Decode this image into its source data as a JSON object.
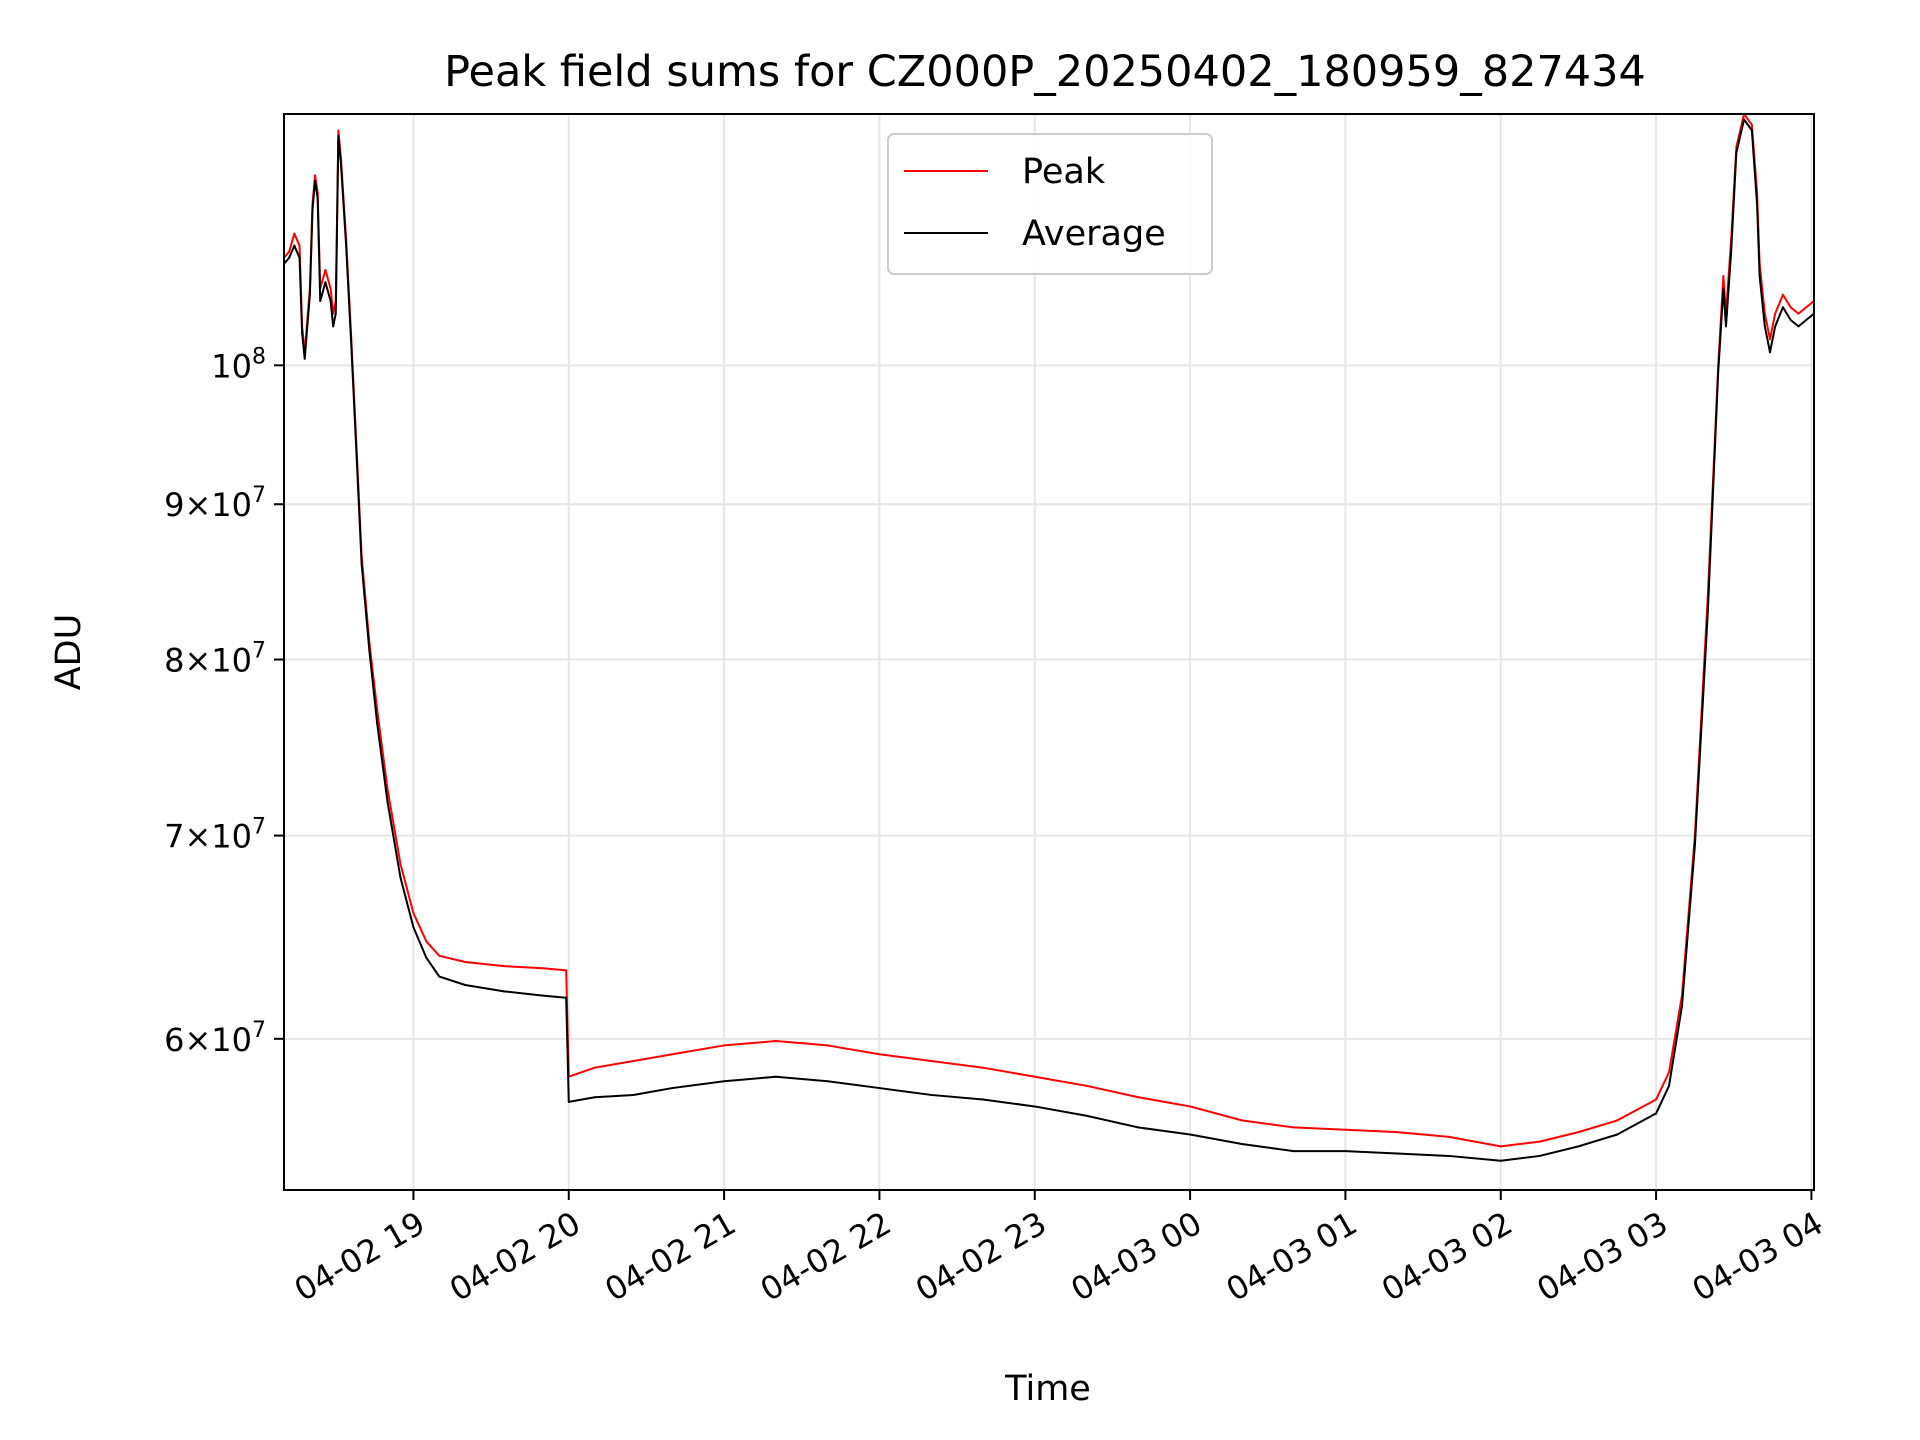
{
  "chart_data": {
    "type": "line",
    "title": "Peak field sums for CZ000P_20250402_180959_827434",
    "xlabel": "Time",
    "ylabel": "ADU",
    "y_scale": "log",
    "ylim": [
      53500000,
      121000000
    ],
    "xlim": [
      "2025-04-02 18:10",
      "2025-04-03 04:01"
    ],
    "grid": true,
    "legend_position": "top-center",
    "x_ticks": [
      {
        "value": "2025-04-02 19:00",
        "label": "04-02 19"
      },
      {
        "value": "2025-04-02 20:00",
        "label": "04-02 20"
      },
      {
        "value": "2025-04-02 21:00",
        "label": "04-02 21"
      },
      {
        "value": "2025-04-02 22:00",
        "label": "04-02 22"
      },
      {
        "value": "2025-04-02 23:00",
        "label": "04-02 23"
      },
      {
        "value": "2025-04-03 00:00",
        "label": "04-03 00"
      },
      {
        "value": "2025-04-03 01:00",
        "label": "04-03 01"
      },
      {
        "value": "2025-04-03 02:00",
        "label": "04-03 02"
      },
      {
        "value": "2025-04-03 03:00",
        "label": "04-03 03"
      },
      {
        "value": "2025-04-03 04:00",
        "label": "04-03 04"
      }
    ],
    "y_ticks": [
      {
        "value": 60000000,
        "mant": "6",
        "exp": "7"
      },
      {
        "value": 70000000,
        "mant": "7",
        "exp": "7"
      },
      {
        "value": 80000000,
        "mant": "8",
        "exp": "7"
      },
      {
        "value": 90000000,
        "mant": "9",
        "exp": "7"
      },
      {
        "value": 100000000,
        "mant": "",
        "exp": "8"
      }
    ],
    "series": [
      {
        "name": "Peak",
        "color": "#ff0000",
        "points": [
          [
            "2025-04-02 18:10",
            108500000
          ],
          [
            "2025-04-02 18:12",
            109000000
          ],
          [
            "2025-04-02 18:14",
            110500000
          ],
          [
            "2025-04-02 18:16",
            109500000
          ],
          [
            "2025-04-02 18:17",
            103000000
          ],
          [
            "2025-04-02 18:18",
            101000000
          ],
          [
            "2025-04-02 18:20",
            106000000
          ],
          [
            "2025-04-02 18:21",
            113000000
          ],
          [
            "2025-04-02 18:22",
            115500000
          ],
          [
            "2025-04-02 18:23",
            114000000
          ],
          [
            "2025-04-02 18:24",
            106000000
          ],
          [
            "2025-04-02 18:26",
            107500000
          ],
          [
            "2025-04-02 18:28",
            106000000
          ],
          [
            "2025-04-02 18:29",
            104000000
          ],
          [
            "2025-04-02 18:30",
            105000000
          ],
          [
            "2025-04-02 18:31",
            119500000
          ],
          [
            "2025-04-02 18:32",
            117000000
          ],
          [
            "2025-04-02 18:34",
            110000000
          ],
          [
            "2025-04-02 18:36",
            102000000
          ],
          [
            "2025-04-02 18:38",
            94000000
          ],
          [
            "2025-04-02 18:40",
            86500000
          ],
          [
            "2025-04-02 18:43",
            81000000
          ],
          [
            "2025-04-02 18:46",
            77000000
          ],
          [
            "2025-04-02 18:50",
            72500000
          ],
          [
            "2025-04-02 18:55",
            68500000
          ],
          [
            "2025-04-02 19:00",
            66000000
          ],
          [
            "2025-04-02 19:05",
            64600000
          ],
          [
            "2025-04-02 19:10",
            63900000
          ],
          [
            "2025-04-02 19:20",
            63600000
          ],
          [
            "2025-04-02 19:35",
            63400000
          ],
          [
            "2025-04-02 19:50",
            63300000
          ],
          [
            "2025-04-02 19:59",
            63200000
          ],
          [
            "2025-04-02 20:00",
            58300000
          ],
          [
            "2025-04-02 20:10",
            58700000
          ],
          [
            "2025-04-02 20:25",
            59000000
          ],
          [
            "2025-04-02 20:40",
            59300000
          ],
          [
            "2025-04-02 21:00",
            59700000
          ],
          [
            "2025-04-02 21:20",
            59900000
          ],
          [
            "2025-04-02 21:40",
            59700000
          ],
          [
            "2025-04-02 22:00",
            59300000
          ],
          [
            "2025-04-02 22:20",
            59000000
          ],
          [
            "2025-04-02 22:40",
            58700000
          ],
          [
            "2025-04-02 23:00",
            58300000
          ],
          [
            "2025-04-02 23:20",
            57900000
          ],
          [
            "2025-04-02 23:40",
            57400000
          ],
          [
            "2025-04-03 00:00",
            57000000
          ],
          [
            "2025-04-03 00:20",
            56400000
          ],
          [
            "2025-04-03 00:40",
            56100000
          ],
          [
            "2025-04-03 01:00",
            56000000
          ],
          [
            "2025-04-03 01:20",
            55900000
          ],
          [
            "2025-04-03 01:40",
            55700000
          ],
          [
            "2025-04-03 02:00",
            55300000
          ],
          [
            "2025-04-03 02:15",
            55500000
          ],
          [
            "2025-04-03 02:30",
            55900000
          ],
          [
            "2025-04-03 02:45",
            56400000
          ],
          [
            "2025-04-03 03:00",
            57300000
          ],
          [
            "2025-04-03 03:05",
            58500000
          ],
          [
            "2025-04-03 03:10",
            62000000
          ],
          [
            "2025-04-03 03:15",
            70000000
          ],
          [
            "2025-04-03 03:20",
            84000000
          ],
          [
            "2025-04-03 03:24",
            100000000
          ],
          [
            "2025-04-03 03:26",
            107000000
          ],
          [
            "2025-04-03 03:27",
            104000000
          ],
          [
            "2025-04-03 03:29",
            110000000
          ],
          [
            "2025-04-03 03:31",
            118000000
          ],
          [
            "2025-04-03 03:34",
            121000000
          ],
          [
            "2025-04-03 03:37",
            120000000
          ],
          [
            "2025-04-03 03:39",
            114000000
          ],
          [
            "2025-04-03 03:40",
            108000000
          ],
          [
            "2025-04-03 03:42",
            104000000
          ],
          [
            "2025-04-03 03:44",
            102000000
          ],
          [
            "2025-04-03 03:46",
            104000000
          ],
          [
            "2025-04-03 03:49",
            105500000
          ],
          [
            "2025-04-03 03:52",
            104500000
          ],
          [
            "2025-04-03 03:55",
            104000000
          ],
          [
            "2025-04-03 04:01",
            105000000
          ]
        ]
      },
      {
        "name": "Average",
        "color": "#000000",
        "points": [
          [
            "2025-04-02 18:10",
            108000000
          ],
          [
            "2025-04-02 18:12",
            108500000
          ],
          [
            "2025-04-02 18:14",
            109500000
          ],
          [
            "2025-04-02 18:16",
            108500000
          ],
          [
            "2025-04-02 18:17",
            102500000
          ],
          [
            "2025-04-02 18:18",
            100500000
          ],
          [
            "2025-04-02 18:20",
            105500000
          ],
          [
            "2025-04-02 18:21",
            112500000
          ],
          [
            "2025-04-02 18:22",
            115000000
          ],
          [
            "2025-04-02 18:23",
            113500000
          ],
          [
            "2025-04-02 18:24",
            105000000
          ],
          [
            "2025-04-02 18:26",
            106500000
          ],
          [
            "2025-04-02 18:28",
            105000000
          ],
          [
            "2025-04-02 18:29",
            103000000
          ],
          [
            "2025-04-02 18:30",
            104000000
          ],
          [
            "2025-04-02 18:31",
            119000000
          ],
          [
            "2025-04-02 18:32",
            116500000
          ],
          [
            "2025-04-02 18:34",
            109500000
          ],
          [
            "2025-04-02 18:36",
            101500000
          ],
          [
            "2025-04-02 18:38",
            93500000
          ],
          [
            "2025-04-02 18:40",
            86000000
          ],
          [
            "2025-04-02 18:43",
            80500000
          ],
          [
            "2025-04-02 18:46",
            76200000
          ],
          [
            "2025-04-02 18:50",
            71800000
          ],
          [
            "2025-04-02 18:55",
            67800000
          ],
          [
            "2025-04-02 19:00",
            65300000
          ],
          [
            "2025-04-02 19:05",
            63800000
          ],
          [
            "2025-04-02 19:10",
            62900000
          ],
          [
            "2025-04-02 19:20",
            62500000
          ],
          [
            "2025-04-02 19:35",
            62200000
          ],
          [
            "2025-04-02 19:50",
            62000000
          ],
          [
            "2025-04-02 19:59",
            61900000
          ],
          [
            "2025-04-02 20:00",
            57200000
          ],
          [
            "2025-04-02 20:10",
            57400000
          ],
          [
            "2025-04-02 20:25",
            57500000
          ],
          [
            "2025-04-02 20:40",
            57800000
          ],
          [
            "2025-04-02 21:00",
            58100000
          ],
          [
            "2025-04-02 21:20",
            58300000
          ],
          [
            "2025-04-02 21:40",
            58100000
          ],
          [
            "2025-04-02 22:00",
            57800000
          ],
          [
            "2025-04-02 22:20",
            57500000
          ],
          [
            "2025-04-02 22:40",
            57300000
          ],
          [
            "2025-04-02 23:00",
            57000000
          ],
          [
            "2025-04-02 23:20",
            56600000
          ],
          [
            "2025-04-02 23:40",
            56100000
          ],
          [
            "2025-04-03 00:00",
            55800000
          ],
          [
            "2025-04-03 00:20",
            55400000
          ],
          [
            "2025-04-03 00:40",
            55100000
          ],
          [
            "2025-04-03 01:00",
            55100000
          ],
          [
            "2025-04-03 01:20",
            55000000
          ],
          [
            "2025-04-03 01:40",
            54900000
          ],
          [
            "2025-04-03 02:00",
            54700000
          ],
          [
            "2025-04-03 02:15",
            54900000
          ],
          [
            "2025-04-03 02:30",
            55300000
          ],
          [
            "2025-04-03 02:45",
            55800000
          ],
          [
            "2025-04-03 03:00",
            56700000
          ],
          [
            "2025-04-03 03:05",
            57900000
          ],
          [
            "2025-04-03 03:10",
            61500000
          ],
          [
            "2025-04-03 03:15",
            69500000
          ],
          [
            "2025-04-03 03:20",
            83000000
          ],
          [
            "2025-04-03 03:24",
            99500000
          ],
          [
            "2025-04-03 03:26",
            106000000
          ],
          [
            "2025-04-03 03:27",
            103000000
          ],
          [
            "2025-04-03 03:29",
            109000000
          ],
          [
            "2025-04-03 03:31",
            117500000
          ],
          [
            "2025-04-03 03:34",
            120500000
          ],
          [
            "2025-04-03 03:37",
            119500000
          ],
          [
            "2025-04-03 03:39",
            113000000
          ],
          [
            "2025-04-03 03:40",
            107000000
          ],
          [
            "2025-04-03 03:42",
            103000000
          ],
          [
            "2025-04-03 03:44",
            101000000
          ],
          [
            "2025-04-03 03:46",
            103000000
          ],
          [
            "2025-04-03 03:49",
            104500000
          ],
          [
            "2025-04-03 03:52",
            103500000
          ],
          [
            "2025-04-03 03:55",
            103000000
          ],
          [
            "2025-04-03 04:01",
            104000000
          ]
        ]
      }
    ]
  }
}
